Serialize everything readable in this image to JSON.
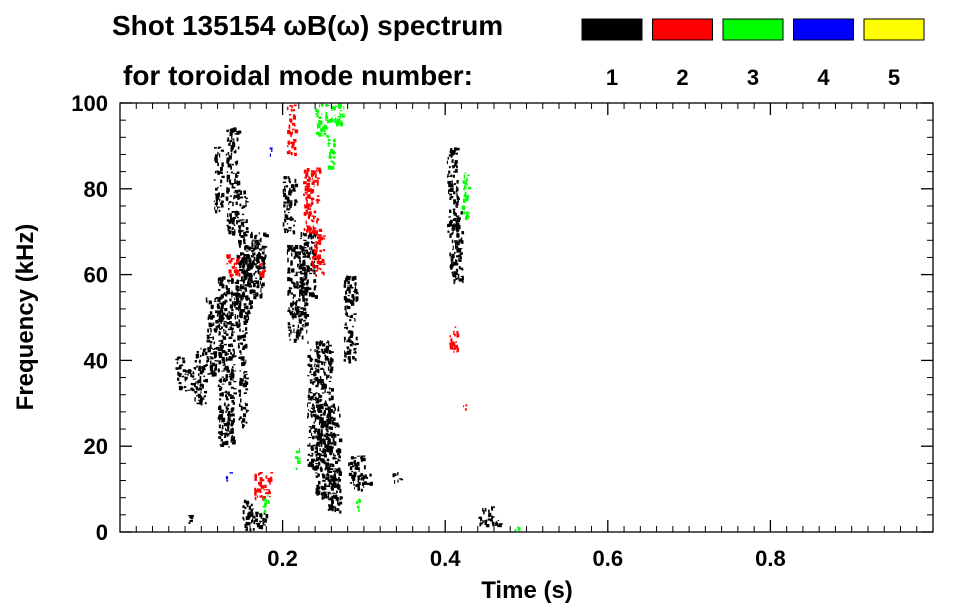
{
  "chart_data": {
    "type": "scatter",
    "title": "Shot 135154 ωB(ω) spectrum",
    "subtitle": "for toroidal mode number:",
    "xlabel": "Time (s)",
    "ylabel": "Frequency (kHz)",
    "xlim": [
      0.0,
      1.0
    ],
    "ylim": [
      0,
      100
    ],
    "x_ticks": [
      0.2,
      0.4,
      0.6,
      0.8
    ],
    "x_tick_labels": [
      "0.2",
      "0.4",
      "0.6",
      "0.8"
    ],
    "y_ticks": [
      0,
      20,
      40,
      60,
      80,
      100
    ],
    "y_tick_labels": [
      "0",
      "20",
      "40",
      "60",
      "80",
      "100"
    ],
    "grid": false,
    "legend_position": "top-right",
    "legend": [
      {
        "mode": "1",
        "color": "#000000"
      },
      {
        "mode": "2",
        "color": "#ff0000"
      },
      {
        "mode": "3",
        "color": "#00ff00"
      },
      {
        "mode": "4",
        "color": "#0000ff"
      },
      {
        "mode": "5",
        "color": "#ffff00"
      }
    ],
    "series": [
      {
        "mode": "1",
        "color": "#000000",
        "blobs": [
          {
            "x": [
              0.067,
              0.078
            ],
            "y": [
              38,
              41
            ]
          },
          {
            "x": [
              0.07,
              0.09
            ],
            "y": [
              33,
              38
            ]
          },
          {
            "x": [
              0.09,
              0.105
            ],
            "y": [
              30,
              43
            ]
          },
          {
            "x": [
              0.105,
              0.125
            ],
            "y": [
              37,
              55
            ]
          },
          {
            "x": [
              0.12,
              0.145
            ],
            "y": [
              45,
              60
            ]
          },
          {
            "x": [
              0.14,
              0.16
            ],
            "y": [
              50,
              65
            ]
          },
          {
            "x": [
              0.155,
              0.175
            ],
            "y": [
              55,
              68
            ]
          },
          {
            "x": [
              0.16,
              0.18
            ],
            "y": [
              62,
              70
            ]
          },
          {
            "x": [
              0.12,
              0.14
            ],
            "y": [
              20,
              45
            ]
          },
          {
            "x": [
              0.115,
              0.125
            ],
            "y": [
              75,
              90
            ]
          },
          {
            "x": [
              0.13,
              0.145
            ],
            "y": [
              70,
              95
            ]
          },
          {
            "x": [
              0.145,
              0.155
            ],
            "y": [
              25,
              80
            ]
          },
          {
            "x": [
              0.15,
              0.165
            ],
            "y": [
              0.5,
              8
            ]
          },
          {
            "x": [
              0.165,
              0.18
            ],
            "y": [
              1,
              5
            ]
          },
          {
            "x": [
              0.205,
              0.23
            ],
            "y": [
              45,
              67
            ]
          },
          {
            "x": [
              0.2,
              0.215
            ],
            "y": [
              70,
              83
            ]
          },
          {
            "x": [
              0.22,
              0.24
            ],
            "y": [
              55,
              70
            ]
          },
          {
            "x": [
              0.23,
              0.26
            ],
            "y": [
              15,
              45
            ]
          },
          {
            "x": [
              0.24,
              0.27
            ],
            "y": [
              8,
              30
            ]
          },
          {
            "x": [
              0.255,
              0.27
            ],
            "y": [
              5,
              15
            ]
          },
          {
            "x": [
              0.275,
              0.29
            ],
            "y": [
              40,
              60
            ]
          },
          {
            "x": [
              0.28,
              0.3
            ],
            "y": [
              10,
              18
            ]
          },
          {
            "x": [
              0.3,
              0.31
            ],
            "y": [
              11,
              14
            ]
          },
          {
            "x": [
              0.335,
              0.345
            ],
            "y": [
              12,
              14
            ]
          },
          {
            "x": [
              0.402,
              0.415
            ],
            "y": [
              70,
              90
            ]
          },
          {
            "x": [
              0.405,
              0.42
            ],
            "y": [
              60,
              75
            ]
          },
          {
            "x": [
              0.41,
              0.422
            ],
            "y": [
              58,
              62
            ]
          },
          {
            "x": [
              0.44,
              0.46
            ],
            "y": [
              1.5,
              4
            ]
          },
          {
            "x": [
              0.445,
              0.46
            ],
            "y": [
              4,
              6
            ]
          },
          {
            "x": [
              0.46,
              0.47
            ],
            "y": [
              1,
              3
            ]
          },
          {
            "x": [
              0.08,
              0.09
            ],
            "y": [
              2,
              4
            ]
          }
        ]
      },
      {
        "mode": "2",
        "color": "#ff0000",
        "blobs": [
          {
            "x": [
              0.13,
              0.15
            ],
            "y": [
              60,
              65
            ]
          },
          {
            "x": [
              0.17,
              0.18
            ],
            "y": [
              60,
              63
            ]
          },
          {
            "x": [
              0.165,
              0.185
            ],
            "y": [
              8,
              14
            ]
          },
          {
            "x": [
              0.205,
              0.215
            ],
            "y": [
              88,
              100
            ]
          },
          {
            "x": [
              0.225,
              0.245
            ],
            "y": [
              70,
              85
            ]
          },
          {
            "x": [
              0.235,
              0.25
            ],
            "y": [
              60,
              70
            ]
          },
          {
            "x": [
              0.405,
              0.415
            ],
            "y": [
              42,
              48
            ]
          },
          {
            "x": [
              0.42,
              0.425
            ],
            "y": [
              28,
              30
            ]
          }
        ]
      },
      {
        "mode": "3",
        "color": "#00ff00",
        "blobs": [
          {
            "x": [
              0.175,
              0.182
            ],
            "y": [
              5,
              9
            ]
          },
          {
            "x": [
              0.24,
              0.255
            ],
            "y": [
              92,
              100
            ]
          },
          {
            "x": [
              0.255,
              0.275
            ],
            "y": [
              95,
              100
            ]
          },
          {
            "x": [
              0.255,
              0.265
            ],
            "y": [
              85,
              92
            ]
          },
          {
            "x": [
              0.42,
              0.428
            ],
            "y": [
              73,
              84
            ]
          },
          {
            "x": [
              0.215,
              0.22
            ],
            "y": [
              15,
              20
            ]
          },
          {
            "x": [
              0.29,
              0.295
            ],
            "y": [
              5,
              8
            ]
          },
          {
            "x": [
              0.485,
              0.49
            ],
            "y": [
              0.5,
              1.5
            ]
          }
        ]
      },
      {
        "mode": "4",
        "color": "#0000ff",
        "blobs": [
          {
            "x": [
              0.13,
              0.135
            ],
            "y": [
              12,
              14
            ]
          },
          {
            "x": [
              0.182,
              0.186
            ],
            "y": [
              88,
              90
            ]
          }
        ]
      }
    ]
  }
}
